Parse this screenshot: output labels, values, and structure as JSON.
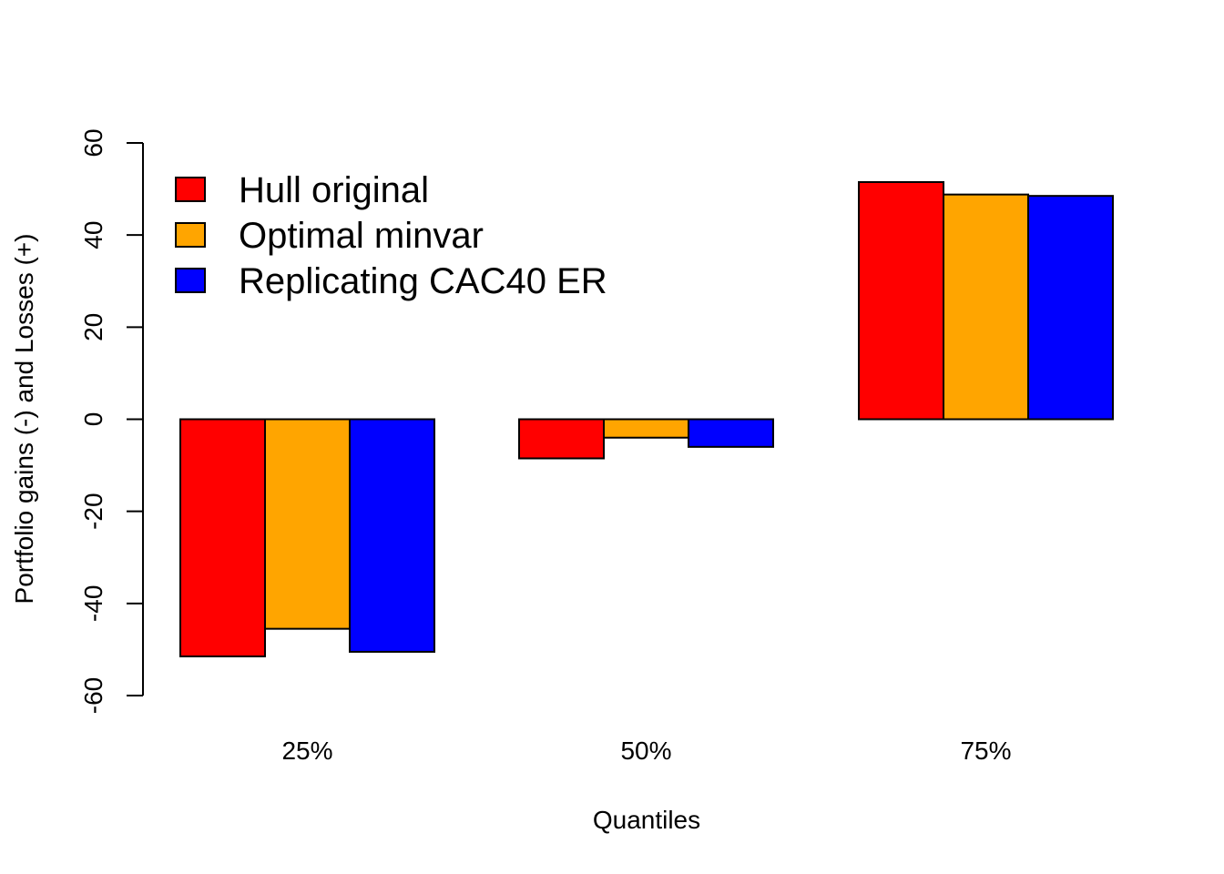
{
  "chart_data": {
    "type": "bar",
    "categories": [
      "25%",
      "50%",
      "75%"
    ],
    "series": [
      {
        "name": "Hull original",
        "color": "#ff0000",
        "values": [
          -51.5,
          -8.5,
          51.5
        ]
      },
      {
        "name": "Optimal minvar",
        "color": "#ffa500",
        "values": [
          -45.5,
          -4.0,
          48.8
        ]
      },
      {
        "name": "Replicating CAC40 ER",
        "color": "#0000ff",
        "values": [
          -50.5,
          -6.0,
          48.5
        ]
      }
    ],
    "title": "",
    "xlabel": "Quantiles",
    "ylabel": "Portfolio gains (-) and Losses (+)",
    "ylim": [
      -60,
      60
    ],
    "yticks": [
      -60,
      -40,
      -20,
      0,
      20,
      40,
      60
    ],
    "grid": false,
    "legend_position": "top-left"
  }
}
